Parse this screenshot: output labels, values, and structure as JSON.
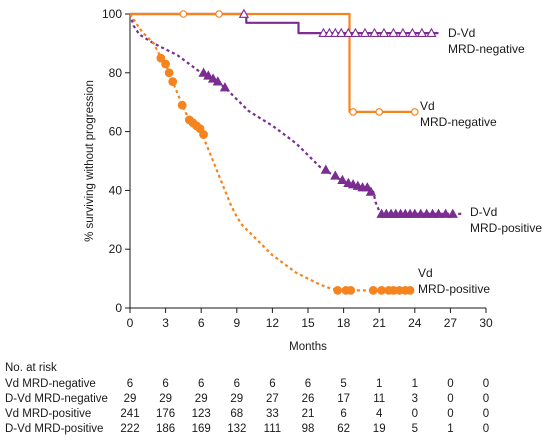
{
  "chart_data": {
    "type": "line",
    "ylabel": "% surviving without progression",
    "xlabel": "Months",
    "xlim": [
      0,
      30
    ],
    "ylim": [
      0,
      100
    ],
    "x_ticks": [
      0,
      3,
      6,
      9,
      12,
      15,
      18,
      21,
      24,
      27,
      30
    ],
    "y_ticks": [
      0,
      20,
      40,
      60,
      80,
      100
    ],
    "grid": false,
    "series": [
      {
        "name": "D-Vd MRD-negative",
        "label_lines": [
          "D-Vd",
          "MRD-negative"
        ],
        "color": "#7b2d91",
        "line_style": "solid",
        "marker": "open-triangle",
        "points": [
          [
            0,
            100
          ],
          [
            9.8,
            100
          ],
          [
            9.8,
            97
          ],
          [
            14.2,
            97
          ],
          [
            14.2,
            93.5
          ],
          [
            26,
            93.5
          ]
        ],
        "censor_x": [
          9.6,
          16.3,
          16.8,
          17.3,
          17.8,
          18.4,
          19.0,
          19.8,
          20.6,
          21.4,
          22.2,
          23.0,
          23.8,
          24.6,
          25.4
        ],
        "censor_y": [
          100,
          93.5,
          93.5,
          93.5,
          93.5,
          93.5,
          93.5,
          93.5,
          93.5,
          93.5,
          93.5,
          93.5,
          93.5,
          93.5,
          93.5
        ]
      },
      {
        "name": "Vd MRD-negative",
        "label_lines": [
          "Vd",
          "MRD-negative"
        ],
        "color": "#f5841f",
        "line_style": "solid",
        "marker": "open-circle",
        "points": [
          [
            0,
            100
          ],
          [
            18.5,
            100
          ],
          [
            18.5,
            66.7
          ],
          [
            24.2,
            66.7
          ]
        ],
        "censor_x": [
          4.5,
          7.5,
          18.8,
          21.0,
          24.0
        ],
        "censor_y": [
          100,
          100,
          66.7,
          66.7,
          66.7
        ]
      },
      {
        "name": "D-Vd MRD-positive",
        "label_lines": [
          "D-Vd",
          "MRD-positive"
        ],
        "color": "#7b2d91",
        "line_style": "dashed",
        "marker": "filled-triangle",
        "points": [
          [
            0,
            100
          ],
          [
            0.3,
            96
          ],
          [
            0.8,
            93
          ],
          [
            2,
            90
          ],
          [
            3,
            88
          ],
          [
            4,
            86
          ],
          [
            5,
            83
          ],
          [
            6,
            80
          ],
          [
            7,
            77.5
          ],
          [
            8,
            75
          ],
          [
            9,
            71
          ],
          [
            10,
            67
          ],
          [
            11,
            64.5
          ],
          [
            12,
            62
          ],
          [
            13,
            59
          ],
          [
            14,
            56
          ],
          [
            15,
            52
          ],
          [
            16,
            48
          ],
          [
            17,
            45.5
          ],
          [
            18,
            43
          ],
          [
            19,
            41.5
          ],
          [
            20,
            41
          ],
          [
            20.5,
            39.5
          ],
          [
            20.7,
            36
          ],
          [
            21,
            33
          ],
          [
            21.3,
            32
          ],
          [
            28,
            32
          ]
        ],
        "censor_x": [
          6.2,
          6.6,
          7.0,
          7.4,
          8.0,
          16.5,
          17.3,
          17.9,
          18.4,
          18.8,
          19.2,
          19.6,
          20.0,
          20.3,
          21.2,
          21.6,
          22.0,
          22.4,
          22.8,
          23.2,
          23.6,
          24.0,
          24.5,
          25.0,
          25.5,
          26.0,
          26.6,
          27.2
        ],
        "censor_y": [
          80,
          79,
          78,
          77,
          75,
          47,
          45,
          43.5,
          42.5,
          42,
          41.5,
          41,
          41,
          39.5,
          32,
          32,
          32,
          32,
          32,
          32,
          32,
          32,
          32,
          32,
          32,
          32,
          32,
          32
        ]
      },
      {
        "name": "Vd MRD-positive",
        "label_lines": [
          "Vd",
          "MRD-positive"
        ],
        "color": "#f5841f",
        "line_style": "dashed",
        "marker": "filled-circle",
        "points": [
          [
            0,
            100
          ],
          [
            0.5,
            97
          ],
          [
            1,
            94
          ],
          [
            2,
            90
          ],
          [
            2.5,
            86
          ],
          [
            3,
            83
          ],
          [
            3.5,
            78
          ],
          [
            4,
            73
          ],
          [
            4.5,
            68
          ],
          [
            5,
            64
          ],
          [
            5.5,
            62
          ],
          [
            6,
            60
          ],
          [
            6.5,
            55
          ],
          [
            7,
            50
          ],
          [
            7.5,
            45
          ],
          [
            8,
            40
          ],
          [
            8.5,
            35
          ],
          [
            9,
            31
          ],
          [
            9.5,
            28
          ],
          [
            10,
            26
          ],
          [
            11,
            22
          ],
          [
            12,
            18
          ],
          [
            13,
            15
          ],
          [
            14,
            12
          ],
          [
            15,
            10
          ],
          [
            16,
            8
          ],
          [
            17,
            6.5
          ],
          [
            18,
            6
          ],
          [
            23.8,
            6
          ]
        ],
        "censor_x": [
          2.6,
          3.0,
          3.3,
          3.6,
          4.4,
          5.0,
          5.3,
          5.6,
          5.9,
          6.2,
          17.5,
          18.2,
          18.6,
          20.5,
          21.2,
          21.8,
          22.2,
          22.7,
          23.2,
          23.6
        ],
        "censor_y": [
          85,
          83,
          80,
          77,
          69,
          64,
          63,
          62,
          61,
          59,
          6,
          6,
          6,
          6,
          6,
          6,
          6,
          6,
          6,
          6
        ]
      }
    ]
  },
  "risk_table": {
    "title": "No. at risk",
    "rows": [
      {
        "label": "Vd MRD-negative",
        "values": [
          "6",
          "6",
          "6",
          "6",
          "6",
          "6",
          "5",
          "1",
          "1",
          "0",
          "0"
        ]
      },
      {
        "label": "D-Vd MRD-negative",
        "values": [
          "29",
          "29",
          "29",
          "29",
          "27",
          "26",
          "17",
          "11",
          "3",
          "0",
          "0"
        ]
      },
      {
        "label": "Vd MRD-positive",
        "values": [
          "241",
          "176",
          "123",
          "68",
          "33",
          "21",
          "6",
          "4",
          "0",
          "0",
          "0"
        ]
      },
      {
        "label": "D-Vd MRD-positive",
        "values": [
          "222",
          "186",
          "169",
          "132",
          "111",
          "98",
          "62",
          "19",
          "5",
          "1",
          "0"
        ]
      }
    ]
  }
}
